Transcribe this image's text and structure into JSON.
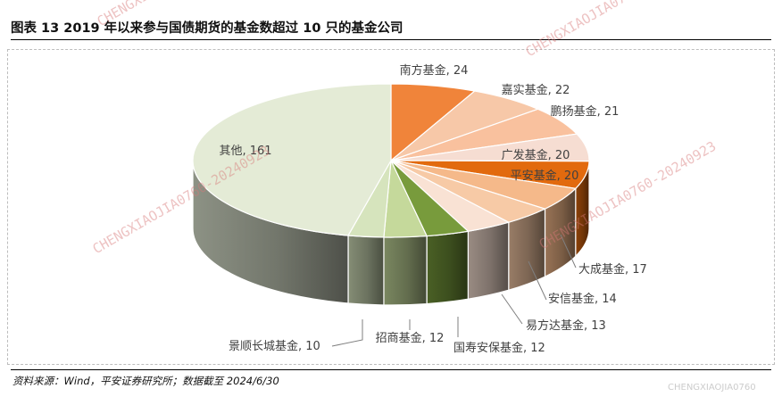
{
  "header": {
    "figure_title": "图表 13   2019 年以来参与国债期货的基金数超过 10 只的基金公司"
  },
  "footer": {
    "source": "资料来源：Wind，平安证券研究所；数据截至 2024/6/30"
  },
  "watermarks": [
    "CHENGXIAOJIA0760-20240923",
    "CHENGXIAOJIA0760-20240923",
    "CHENGXIAOJIA0760-20240923",
    "CHENGXIAOJIA0760-20240923",
    "CHENGXIAOJIA0760"
  ],
  "chart_data": {
    "type": "pie",
    "style": "3d",
    "title": "",
    "slices": [
      {
        "label": "南方基金",
        "value": 24,
        "color": "#f0843a"
      },
      {
        "label": "嘉实基金",
        "value": 22,
        "color": "#f7c8a8"
      },
      {
        "label": "鹏扬基金",
        "value": 21,
        "color": "#f9c19e"
      },
      {
        "label": "广发基金",
        "value": 20,
        "color": "#f6ddd2"
      },
      {
        "label": "平安基金",
        "value": 20,
        "color": "#e26a0e"
      },
      {
        "label": "大成基金",
        "value": 17,
        "color": "#f5b98a"
      },
      {
        "label": "安信基金",
        "value": 14,
        "color": "#f7caa6"
      },
      {
        "label": "易方达基金",
        "value": 13,
        "color": "#f9e2d4"
      },
      {
        "label": "国寿安保基金",
        "value": 12,
        "color": "#789b3c"
      },
      {
        "label": "招商基金",
        "value": 12,
        "color": "#c5d99b"
      },
      {
        "label": "景顺长城基金",
        "value": 10,
        "color": "#d6e4bd"
      },
      {
        "label": "其他",
        "value": 161,
        "color": "#e4ebd6"
      }
    ]
  }
}
